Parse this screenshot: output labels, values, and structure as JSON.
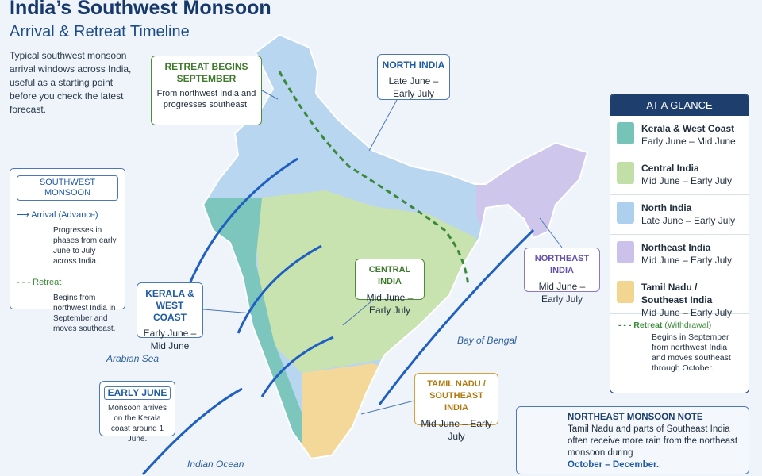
{
  "header": {
    "title": "India’s Southwest Monsoon",
    "subtitle": "Arrival & Retreat Timeline"
  },
  "intro": "Typical southwest monsoon arrival windows across India, useful as a starting point before you check the latest forecast.",
  "legend": {
    "title": "SOUTHWEST MONSOON",
    "arrival": {
      "label": "Arrival",
      "tag": "(Advance)",
      "text": "Progresses in phases from early June to July across India."
    },
    "retreat": {
      "label": "Retreat",
      "text": "Begins from northwest India in September and moves southeast."
    }
  },
  "callouts": {
    "retreat": {
      "title": "RETREAT BEGINS SEPTEMBER",
      "text": "From northwest India and progresses southeast."
    },
    "north": {
      "title": "NORTH INDIA",
      "text": "Late June – Early July"
    },
    "kerala": {
      "title": "KERALA & WEST COAST",
      "text": "Early June – Mid June"
    },
    "central": {
      "title": "CENTRAL INDIA",
      "text": "Mid June – Early July"
    },
    "northeast": {
      "title": "NORTHEAST INDIA",
      "text": "Mid June – Early July"
    },
    "tamil": {
      "title": "TAMIL NADU / SOUTHEAST INDIA",
      "text": "Mid June – Early July"
    },
    "early_june": {
      "title": "EARLY JUNE",
      "text": "Monsoon arrives on the Kerala coast around 1 June."
    }
  },
  "sea_labels": {
    "arabian": "Arabian Sea",
    "bengal": "Bay of Bengal",
    "indian": "Indian Ocean"
  },
  "at_a_glance": {
    "title": "AT A GLANCE",
    "rows": [
      {
        "region": "Kerala & West Coast",
        "window": "Early June – Mid June"
      },
      {
        "region": "Central India",
        "window": "Mid June – Early July"
      },
      {
        "region": "North India",
        "window": "Late June – Early July"
      },
      {
        "region": "Northeast India",
        "window": "Mid June – Early July"
      },
      {
        "region": "Tamil Nadu / Southeast India",
        "window": "Mid June – Early July"
      }
    ],
    "retreat": {
      "label": "Retreat",
      "tag": "(Withdrawal)",
      "text": "Begins in September from northwest India and moves southeast through October."
    }
  },
  "note": {
    "title": "NORTHEAST MONSOON NOTE",
    "text": "Tamil Nadu and parts of Southeast India often receive more rain from the northeast monsoon during",
    "emphasis": "October – December."
  }
}
